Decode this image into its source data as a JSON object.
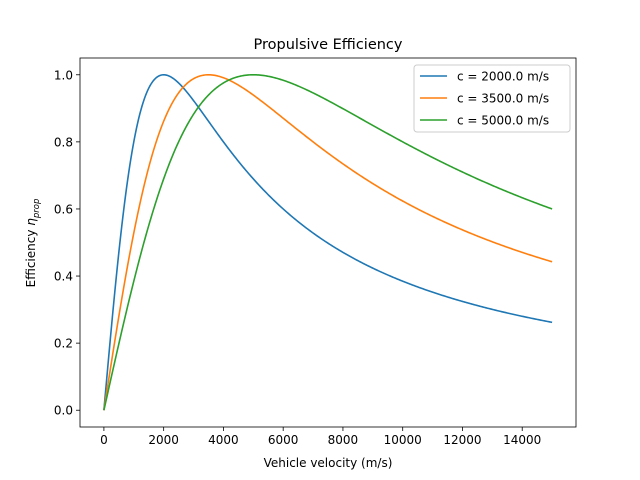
{
  "chart_data": {
    "type": "line",
    "title": "Propulsive Efficiency",
    "xlabel": "Vehicle velocity (m/s)",
    "ylabel": {
      "main": "Efficiency ",
      "symbol": "η",
      "subscript": "prop"
    },
    "xlim": [
      -800,
      15800
    ],
    "ylim": [
      -0.05,
      1.05
    ],
    "xticks": [
      0,
      2000,
      4000,
      6000,
      8000,
      10000,
      12000,
      14000
    ],
    "yticks": [
      0.0,
      0.2,
      0.4,
      0.6,
      0.8,
      1.0
    ],
    "xtick_labels": [
      "0",
      "2000",
      "4000",
      "6000",
      "8000",
      "10000",
      "12000",
      "14000"
    ],
    "ytick_labels": [
      "0.0",
      "0.2",
      "0.4",
      "0.6",
      "0.8",
      "1.0"
    ],
    "x_range": [
      0,
      15000
    ],
    "model": "2*(v/c)/(1+(v/c)^2)",
    "grid": false,
    "legend_position": "top-right",
    "series": [
      {
        "name": "c = 2000.0 m/s",
        "c": 2000,
        "color": "#1f77b4"
      },
      {
        "name": "c = 3500.0 m/s",
        "c": 3500,
        "color": "#ff7f0e"
      },
      {
        "name": "c = 5000.0 m/s",
        "c": 5000,
        "color": "#2ca02c"
      }
    ]
  }
}
